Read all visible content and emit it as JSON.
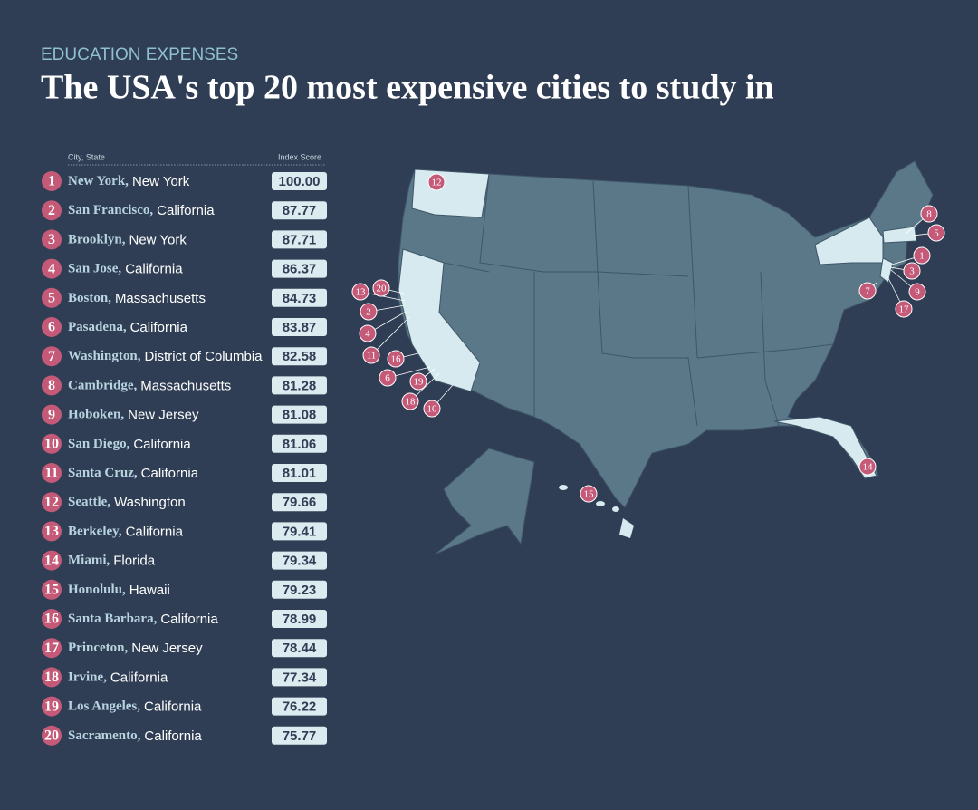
{
  "header": {
    "kicker": "EDUCATION EXPENSES",
    "title": "The USA's top 20 most expensive cities to study in"
  },
  "table": {
    "columns": [
      "City, State",
      "Index Score"
    ],
    "rows": [
      {
        "rank": 1,
        "city": "New York,",
        "state": "New York",
        "score": "100.00"
      },
      {
        "rank": 2,
        "city": "San Francisco,",
        "state": "California",
        "score": "87.77"
      },
      {
        "rank": 3,
        "city": "Brooklyn,",
        "state": "New York",
        "score": "87.71"
      },
      {
        "rank": 4,
        "city": "San Jose,",
        "state": "California",
        "score": "86.37"
      },
      {
        "rank": 5,
        "city": "Boston,",
        "state": "Massachusetts",
        "score": "84.73"
      },
      {
        "rank": 6,
        "city": "Pasadena,",
        "state": "California",
        "score": "83.87"
      },
      {
        "rank": 7,
        "city": "Washington,",
        "state": "District of Columbia",
        "score": "82.58"
      },
      {
        "rank": 8,
        "city": "Cambridge,",
        "state": "Massachusetts",
        "score": "81.28"
      },
      {
        "rank": 9,
        "city": "Hoboken,",
        "state": "New Jersey",
        "score": "81.08"
      },
      {
        "rank": 10,
        "city": "San Diego,",
        "state": "California",
        "score": "81.06"
      },
      {
        "rank": 11,
        "city": "Santa Cruz,",
        "state": "California",
        "score": "81.01"
      },
      {
        "rank": 12,
        "city": "Seattle,",
        "state": "Washington",
        "score": "79.66"
      },
      {
        "rank": 13,
        "city": "Berkeley,",
        "state": "California",
        "score": "79.41"
      },
      {
        "rank": 14,
        "city": "Miami,",
        "state": "Florida",
        "score": "79.34"
      },
      {
        "rank": 15,
        "city": "Honolulu,",
        "state": "Hawaii",
        "score": "79.23"
      },
      {
        "rank": 16,
        "city": "Santa Barbara,",
        "state": "California",
        "score": "78.99"
      },
      {
        "rank": 17,
        "city": "Princeton,",
        "state": "New Jersey",
        "score": "78.44"
      },
      {
        "rank": 18,
        "city": "Irvine,",
        "state": "California",
        "score": "77.34"
      },
      {
        "rank": 19,
        "city": "Los Angeles,",
        "state": "California",
        "score": "76.22"
      },
      {
        "rank": 20,
        "city": "Sacramento,",
        "state": "California",
        "score": "75.77"
      }
    ]
  }
}
